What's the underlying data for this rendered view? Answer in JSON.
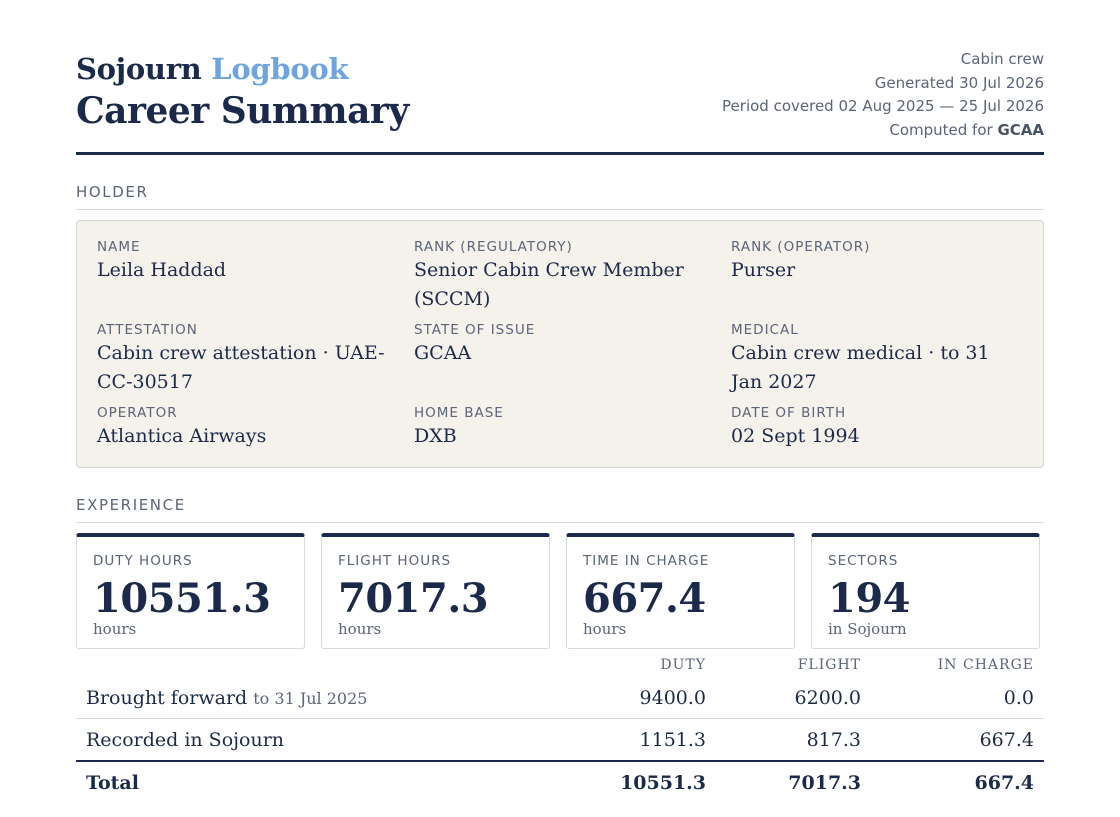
{
  "header": {
    "brand_main": "Sojourn",
    "brand_accent": "Logbook",
    "title": "Career Summary",
    "meta": {
      "role": "Cabin crew",
      "generated": "Generated 30 Jul 2026",
      "period": "Period covered 02 Aug 2025 — 25 Jul 2026",
      "computed_prefix": "Computed for",
      "computed_authority": "GCAA"
    }
  },
  "holder": {
    "section_title": "HOLDER",
    "fields": [
      {
        "label": "NAME",
        "value": "Leila Haddad"
      },
      {
        "label": "RANK (REGULATORY)",
        "value": "Senior Cabin Crew Member (SCCM)"
      },
      {
        "label": "RANK (OPERATOR)",
        "value": "Purser"
      },
      {
        "label": "ATTESTATION",
        "value": "Cabin crew attestation · UAE-CC-30517"
      },
      {
        "label": "STATE OF ISSUE",
        "value": "GCAA"
      },
      {
        "label": "MEDICAL",
        "value": "Cabin crew medical · to 31 Jan 2027"
      },
      {
        "label": "OPERATOR",
        "value": "Atlantica Airways"
      },
      {
        "label": "HOME BASE",
        "value": "DXB"
      },
      {
        "label": "DATE OF BIRTH",
        "value": "02 Sept 1994"
      }
    ]
  },
  "experience": {
    "section_title": "EXPERIENCE",
    "cards": [
      {
        "label": "DUTY HOURS",
        "value": "10551.3",
        "unit": "hours"
      },
      {
        "label": "FLIGHT HOURS",
        "value": "7017.3",
        "unit": "hours"
      },
      {
        "label": "TIME IN CHARGE",
        "value": "667.4",
        "unit": "hours"
      },
      {
        "label": "SECTORS",
        "value": "194",
        "unit": "in Sojourn"
      }
    ],
    "table": {
      "headers": [
        "",
        "DUTY",
        "FLIGHT",
        "IN CHARGE"
      ],
      "rows": [
        {
          "label": "Brought forward",
          "sub": "to 31 Jul 2025",
          "duty": "9400.0",
          "flight": "6200.0",
          "in_charge": "0.0"
        },
        {
          "label": "Recorded in Sojourn",
          "sub": "",
          "duty": "1151.3",
          "flight": "817.3",
          "in_charge": "667.4"
        },
        {
          "label": "Total",
          "sub": "",
          "duty": "10551.3",
          "flight": "7017.3",
          "in_charge": "667.4"
        }
      ]
    }
  }
}
